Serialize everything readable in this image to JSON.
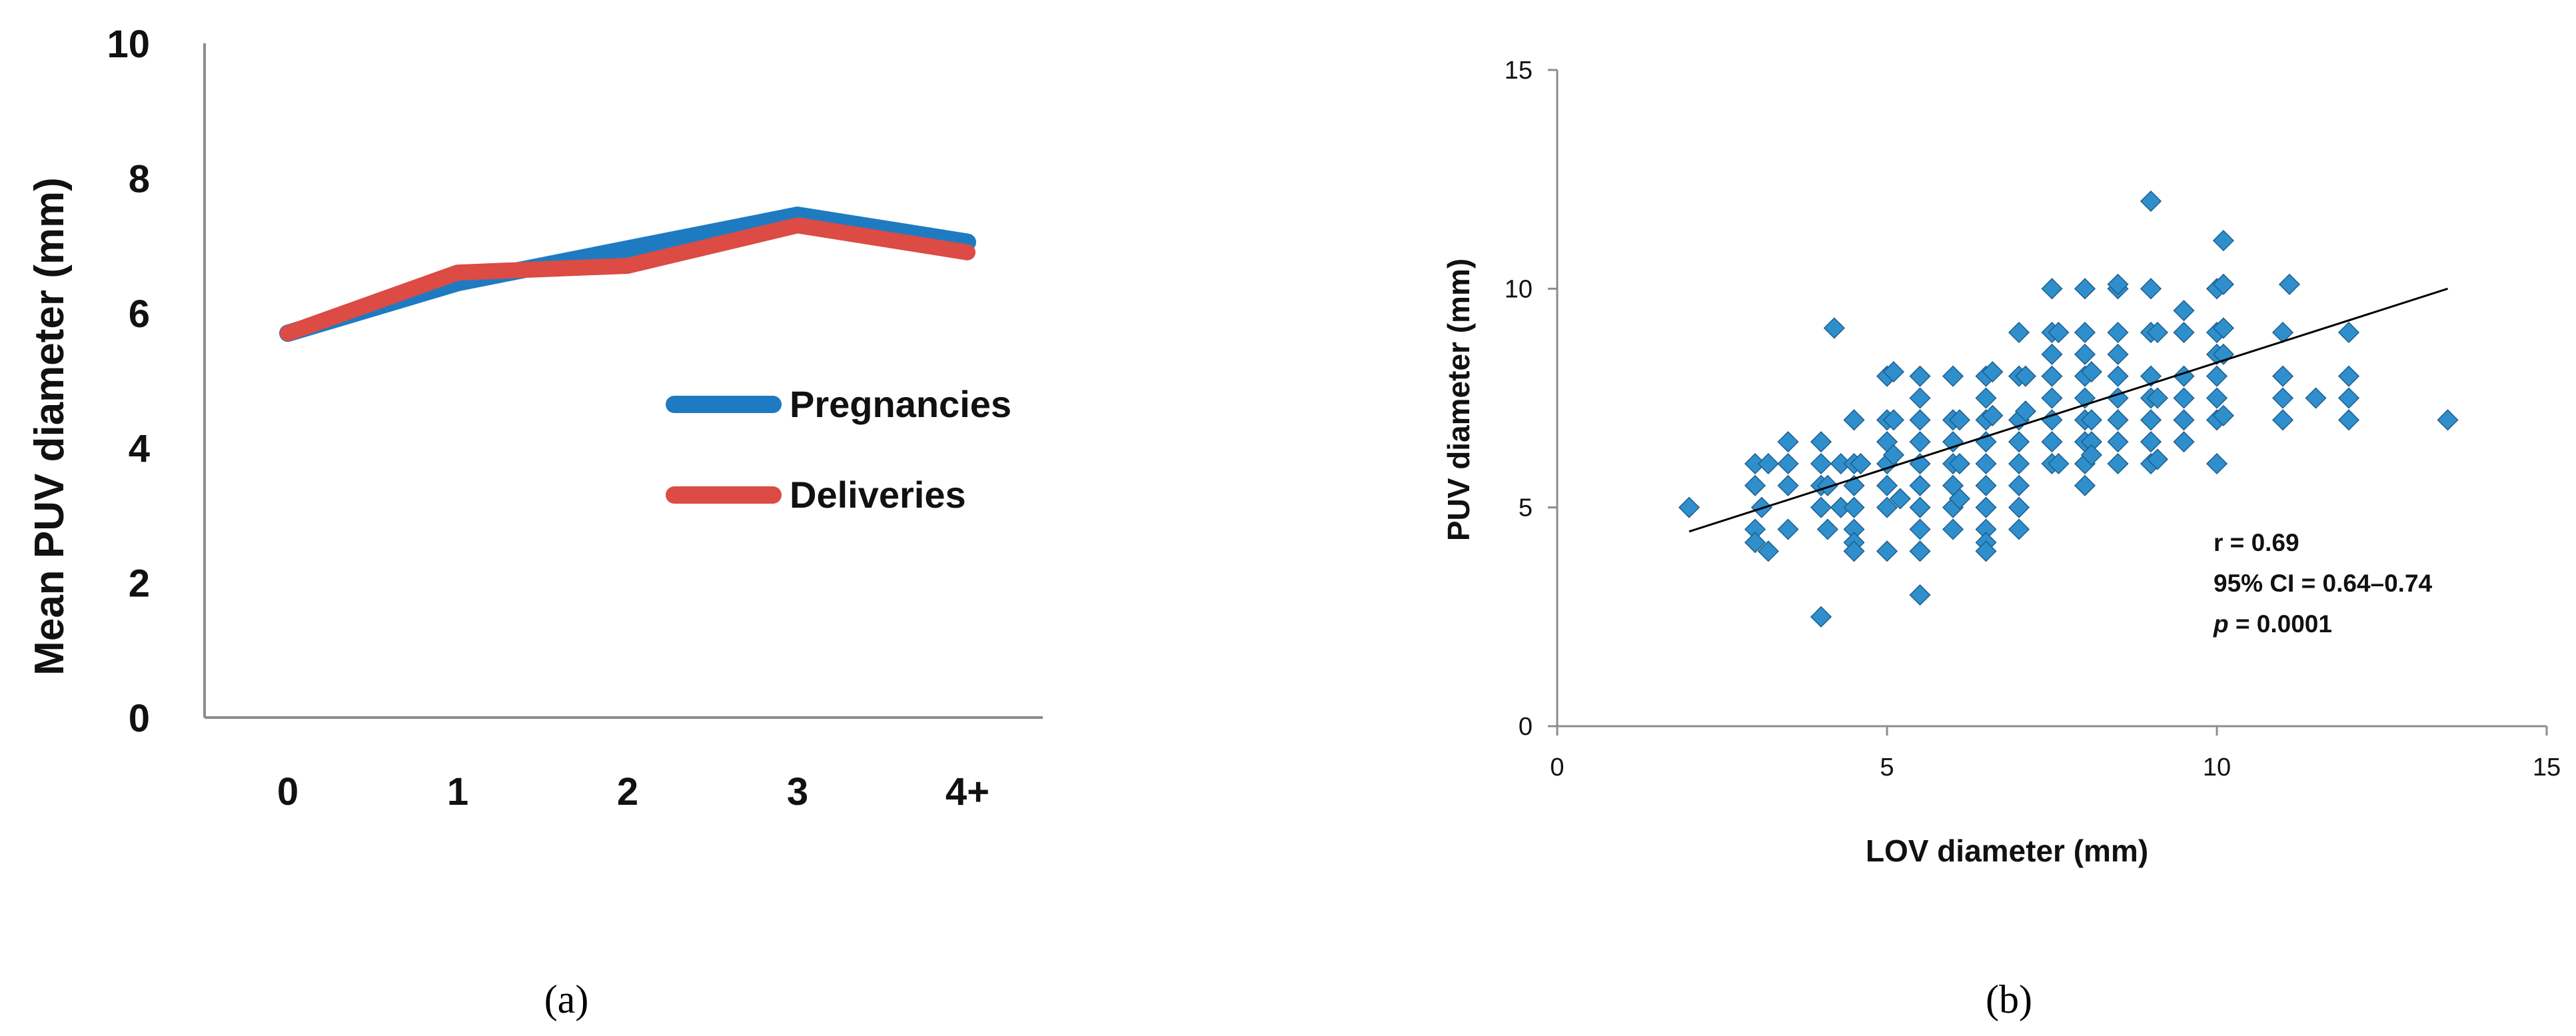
{
  "chart_data": [
    {
      "type": "line",
      "panel_label": "(a)",
      "title": "",
      "xlabel": "",
      "ylabel": "Mean PUV diameter  (mm)",
      "categories": [
        "0",
        "1",
        "2",
        "3",
        "4+"
      ],
      "yticks": [
        "0",
        "2",
        "4",
        "6",
        "8",
        "10"
      ],
      "ylim": [
        0,
        10
      ],
      "grid": false,
      "legend_position": "right",
      "series": [
        {
          "name": "Pregnancies",
          "color": "#1f7bc1",
          "values": [
            5.7,
            6.45,
            6.95,
            7.45,
            7.05
          ]
        },
        {
          "name": "Deliveries",
          "color": "#dc4b44",
          "values": [
            5.7,
            6.6,
            6.7,
            7.3,
            6.9
          ]
        }
      ]
    },
    {
      "type": "scatter",
      "panel_label": "(b)",
      "title": "",
      "xlabel": "LOV diameter (mm)",
      "ylabel": "PUV diameter (mm)",
      "xlim": [
        0,
        15
      ],
      "ylim": [
        0,
        15
      ],
      "xticks": [
        "0",
        "5",
        "10",
        "15"
      ],
      "yticks": [
        "0",
        "5",
        "10",
        "15"
      ],
      "marker_color": "#2f8fcd",
      "marker_edge_color": "#1e5e8c",
      "grid": false,
      "trendline": {
        "x": [
          2,
          13.5
        ],
        "y": [
          4.45,
          10.0
        ]
      },
      "annotations": [
        "r = 0.69",
        "95% CI = 0.64–0.74",
        "p",
        " = 0.0001"
      ],
      "points": [
        [
          2,
          5
        ],
        [
          3,
          6
        ],
        [
          3,
          5.5
        ],
        [
          3.1,
          5
        ],
        [
          3,
          4.5
        ],
        [
          3.2,
          4
        ],
        [
          3,
          4.2
        ],
        [
          3.2,
          6
        ],
        [
          3.5,
          6
        ],
        [
          3.5,
          6.5
        ],
        [
          3.5,
          5.5
        ],
        [
          3.5,
          4.5
        ],
        [
          4,
          2.5
        ],
        [
          4,
          5
        ],
        [
          4,
          5.5
        ],
        [
          4,
          6
        ],
        [
          4,
          6.5
        ],
        [
          4.1,
          5.5
        ],
        [
          4.1,
          4.5
        ],
        [
          4.2,
          9.1
        ],
        [
          4.3,
          6
        ],
        [
          4.3,
          5
        ],
        [
          4.5,
          7
        ],
        [
          4.5,
          6
        ],
        [
          4.5,
          5.5
        ],
        [
          4.5,
          5
        ],
        [
          4.5,
          4.5
        ],
        [
          4.5,
          4.2
        ],
        [
          4.5,
          4
        ],
        [
          4.6,
          6
        ],
        [
          5,
          8
        ],
        [
          5,
          7
        ],
        [
          5,
          6.5
        ],
        [
          5,
          6
        ],
        [
          5,
          5.5
        ],
        [
          5,
          5
        ],
        [
          5,
          4
        ],
        [
          5.1,
          8.1
        ],
        [
          5.1,
          7
        ],
        [
          5.1,
          6.2
        ],
        [
          5.2,
          5.2
        ],
        [
          5.5,
          8
        ],
        [
          5.5,
          7.5
        ],
        [
          5.5,
          7
        ],
        [
          5.5,
          6.5
        ],
        [
          5.5,
          6
        ],
        [
          5.5,
          5.5
        ],
        [
          5.5,
          5
        ],
        [
          5.5,
          4.5
        ],
        [
          5.5,
          4
        ],
        [
          5.5,
          3
        ],
        [
          6,
          8
        ],
        [
          6,
          7
        ],
        [
          6,
          6.5
        ],
        [
          6,
          6
        ],
        [
          6,
          5.5
        ],
        [
          6,
          5
        ],
        [
          6,
          4.5
        ],
        [
          6.1,
          7
        ],
        [
          6.1,
          6
        ],
        [
          6.1,
          5.2
        ],
        [
          6.5,
          8
        ],
        [
          6.5,
          7.5
        ],
        [
          6.5,
          7
        ],
        [
          6.5,
          6.5
        ],
        [
          6.5,
          6
        ],
        [
          6.5,
          5.5
        ],
        [
          6.5,
          5
        ],
        [
          6.5,
          4.5
        ],
        [
          6.5,
          4.2
        ],
        [
          6.5,
          4
        ],
        [
          6.6,
          8.1
        ],
        [
          6.6,
          7.1
        ],
        [
          7,
          9
        ],
        [
          7,
          8
        ],
        [
          7,
          7
        ],
        [
          7,
          6.5
        ],
        [
          7,
          6
        ],
        [
          7,
          5.5
        ],
        [
          7,
          5
        ],
        [
          7,
          4.5
        ],
        [
          7.1,
          8
        ],
        [
          7.1,
          7.2
        ],
        [
          7.5,
          10
        ],
        [
          7.5,
          9
        ],
        [
          7.5,
          8.5
        ],
        [
          7.5,
          8
        ],
        [
          7.5,
          7.5
        ],
        [
          7.5,
          7
        ],
        [
          7.5,
          6.5
        ],
        [
          7.5,
          6
        ],
        [
          7.6,
          9
        ],
        [
          7.6,
          6
        ],
        [
          8,
          10
        ],
        [
          8,
          9
        ],
        [
          8,
          8.5
        ],
        [
          8,
          8
        ],
        [
          8,
          7.5
        ],
        [
          8,
          7
        ],
        [
          8,
          6.5
        ],
        [
          8,
          6
        ],
        [
          8,
          5.5
        ],
        [
          8.1,
          8.1
        ],
        [
          8.1,
          7
        ],
        [
          8.1,
          6.5
        ],
        [
          8.1,
          6.2
        ],
        [
          8.5,
          10
        ],
        [
          8.5,
          9
        ],
        [
          8.5,
          8.5
        ],
        [
          8.5,
          8
        ],
        [
          8.5,
          7.5
        ],
        [
          8.5,
          7
        ],
        [
          8.5,
          6.5
        ],
        [
          8.5,
          6
        ],
        [
          8.5,
          10.1
        ],
        [
          9,
          12
        ],
        [
          9,
          10
        ],
        [
          9,
          9
        ],
        [
          9,
          8
        ],
        [
          9,
          7.5
        ],
        [
          9,
          7
        ],
        [
          9,
          6.5
        ],
        [
          9,
          6
        ],
        [
          9.1,
          9
        ],
        [
          9.1,
          7.5
        ],
        [
          9.1,
          6.1
        ],
        [
          9.5,
          9.5
        ],
        [
          9.5,
          9
        ],
        [
          9.5,
          8
        ],
        [
          9.5,
          7.5
        ],
        [
          9.5,
          7
        ],
        [
          9.5,
          6.5
        ],
        [
          10,
          10
        ],
        [
          10,
          9
        ],
        [
          10,
          8.5
        ],
        [
          10,
          8
        ],
        [
          10,
          7.5
        ],
        [
          10,
          7
        ],
        [
          10,
          6
        ],
        [
          10.1,
          11.1
        ],
        [
          10.1,
          10.1
        ],
        [
          10.1,
          9.1
        ],
        [
          10.1,
          8.5
        ],
        [
          10.1,
          7.1
        ],
        [
          11,
          9
        ],
        [
          11,
          8
        ],
        [
          11,
          7.5
        ],
        [
          11,
          7
        ],
        [
          11.1,
          10.1
        ],
        [
          11.5,
          7.5
        ],
        [
          12,
          9
        ],
        [
          12,
          8
        ],
        [
          12,
          7.5
        ],
        [
          12,
          7
        ],
        [
          13.5,
          7
        ]
      ]
    }
  ]
}
